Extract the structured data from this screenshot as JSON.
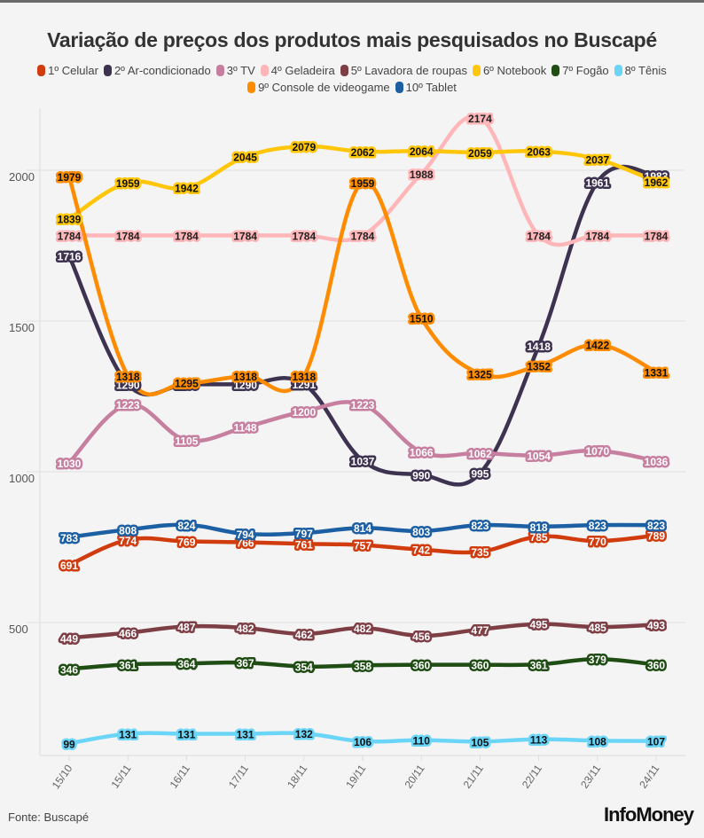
{
  "chart_data": {
    "type": "line",
    "title": "Variação de preços dos produtos mais pesquisados no Buscapé",
    "xlabel": "",
    "ylabel": "",
    "x": [
      "15/10",
      "15/11",
      "16/11",
      "17/11",
      "18/11",
      "19/11",
      "20/11",
      "21/11",
      "22/11",
      "23/11",
      "24/11"
    ],
    "yticks": [
      500,
      1000,
      1500,
      2000
    ],
    "ylim": [
      0,
      2200
    ],
    "grid": true,
    "legend_position": "top",
    "series": [
      {
        "name": "1º Celular",
        "color": "#d13c0f",
        "text_color": "#ffffff",
        "values": [
          691,
          774,
          769,
          766,
          761,
          757,
          742,
          735,
          785,
          770,
          789
        ]
      },
      {
        "name": "2º Ar-condicionado",
        "color": "#3d3350",
        "text_color": "#ffffff",
        "values": [
          1716,
          1290,
          1290,
          1290,
          1291,
          1037,
          990,
          995,
          1418,
          1961,
          1983
        ]
      },
      {
        "name": "3º TV",
        "color": "#c77fa0",
        "text_color": "#ffffff",
        "values": [
          1030,
          1223,
          1105,
          1148,
          1200,
          1223,
          1066,
          1062,
          1054,
          1070,
          1036
        ]
      },
      {
        "name": "4º Geladeira",
        "color": "#ffb6b9",
        "text_color": "#222222",
        "values": [
          1784,
          1784,
          1784,
          1784,
          1784,
          1784,
          1988,
          2174,
          1784,
          1784,
          1784
        ]
      },
      {
        "name": "5º Lavadora de roupas",
        "color": "#7d3f45",
        "text_color": "#ffffff",
        "values": [
          449,
          466,
          487,
          482,
          462,
          482,
          456,
          477,
          495,
          485,
          493
        ]
      },
      {
        "name": "6º Notebook",
        "color": "#ffc60a",
        "text_color": "#111111",
        "values": [
          1839,
          1959,
          1942,
          2045,
          2079,
          2062,
          2064,
          2059,
          2063,
          2037,
          1962
        ]
      },
      {
        "name": "7º Fogão",
        "color": "#1f4d14",
        "text_color": "#ffffff",
        "values": [
          346,
          361,
          364,
          367,
          354,
          358,
          360,
          360,
          361,
          379,
          360
        ]
      },
      {
        "name": "8º Tênis",
        "color": "#6ad5f7",
        "text_color": "#111111",
        "values": [
          99,
          131,
          131,
          131,
          132,
          106,
          110,
          105,
          113,
          108,
          107
        ]
      },
      {
        "name": "9º Console de videogame",
        "color": "#ff8c00",
        "text_color": "#111111",
        "values": [
          1979,
          1318,
          1295,
          1318,
          1318,
          1959,
          1510,
          1325,
          1352,
          1422,
          1331
        ]
      },
      {
        "name": "10º Tablet",
        "color": "#1c5fa3",
        "text_color": "#ffffff",
        "values": [
          783,
          808,
          824,
          794,
          797,
          814,
          803,
          823,
          818,
          823,
          823
        ]
      }
    ]
  },
  "footer": {
    "source": "Fonte: Buscapé",
    "brand": "InfoMoney"
  },
  "colors": {
    "background": "#f4f4f4",
    "grid": "#e6e6e6",
    "title": "#333333"
  }
}
